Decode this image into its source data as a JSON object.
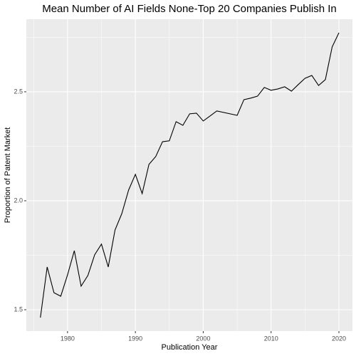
{
  "chart_data": {
    "type": "line",
    "title": "Mean Number of AI Fields None-Top 20 Companies Publish In",
    "x_label": "Publication Year",
    "y_label": "Proportion of Patent Market",
    "x": [
      1976,
      1977,
      1978,
      1979,
      1980,
      1981,
      1982,
      1983,
      1984,
      1985,
      1986,
      1987,
      1988,
      1989,
      1990,
      1991,
      1992,
      1993,
      1994,
      1995,
      1996,
      1997,
      1998,
      1999,
      2000,
      2001,
      2002,
      2005,
      2006,
      2007,
      2008,
      2009,
      2010,
      2011,
      2012,
      2013,
      2014,
      2015,
      2016,
      2017,
      2018,
      2019,
      2020
    ],
    "values": [
      1.464,
      1.696,
      1.578,
      1.562,
      1.66,
      1.771,
      1.608,
      1.657,
      1.752,
      1.801,
      1.696,
      1.866,
      1.941,
      2.049,
      2.121,
      2.033,
      2.167,
      2.203,
      2.271,
      2.275,
      2.363,
      2.346,
      2.399,
      2.402,
      2.366,
      2.389,
      2.412,
      2.392,
      2.464,
      2.471,
      2.48,
      2.52,
      2.507,
      2.513,
      2.523,
      2.503,
      2.533,
      2.562,
      2.575,
      2.529,
      2.556,
      2.706,
      2.771
    ],
    "color": "#000000",
    "xlim": [
      1973.93,
      2021.99
    ],
    "xticks": [
      1980,
      1990,
      2000,
      2010,
      2020
    ],
    "minor_xticks": [
      1975,
      1985,
      1995,
      2005,
      2015
    ],
    "ylim": [
      1.402,
      2.833
    ],
    "yticks": [
      1.5,
      {
        "value": 2,
        "label": "2.0"
      },
      2.5
    ],
    "minor_yticks": [
      1.75,
      2.25,
      2.75
    ],
    "grid": true
  }
}
